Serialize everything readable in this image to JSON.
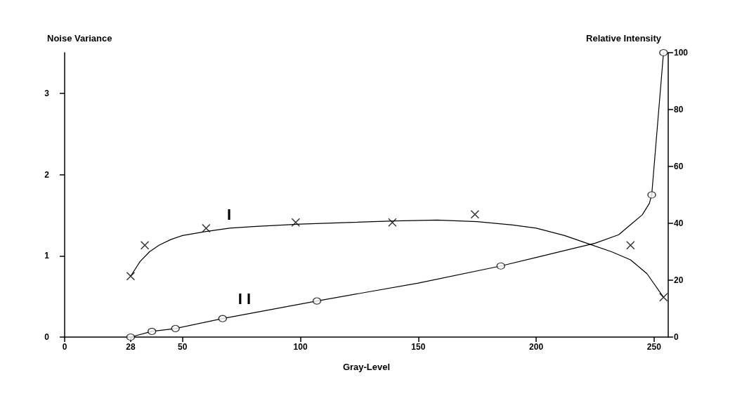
{
  "chart_data": {
    "type": "scatter",
    "xlabel": "Gray-Level",
    "ylabel": "Noise Variance",
    "y2label": "Relative Intensity",
    "xlim": [
      0,
      256
    ],
    "xticks": [
      0,
      28,
      50,
      100,
      150,
      200,
      250
    ],
    "ylim": [
      0,
      3.5
    ],
    "yticks": [
      0,
      1,
      2,
      3
    ],
    "y2lim": [
      0,
      100
    ],
    "y2ticks": [
      0,
      20,
      40,
      60,
      80,
      100
    ],
    "grid": false,
    "annotations": [
      "I",
      "I I"
    ],
    "series": [
      {
        "type": "scatter",
        "marker": "cross",
        "color": "#000000",
        "x": [
          28,
          34,
          60,
          98,
          139,
          174,
          240,
          254
        ],
        "values": [
          0.75,
          1.13,
          1.34,
          1.41,
          1.41,
          1.51,
          1.13,
          0.49
        ]
      },
      {
        "type": "line",
        "marker": "none",
        "color": "#000000",
        "x": [
          28,
          32,
          36,
          40,
          45,
          50,
          60,
          70,
          80,
          100,
          120,
          140,
          158,
          175,
          190,
          200,
          212,
          223,
          232,
          240,
          247,
          254
        ],
        "values": [
          0.75,
          0.93,
          1.05,
          1.13,
          1.2,
          1.25,
          1.3,
          1.34,
          1.36,
          1.39,
          1.41,
          1.43,
          1.44,
          1.42,
          1.38,
          1.34,
          1.25,
          1.14,
          1.05,
          0.95,
          0.78,
          0.49
        ]
      },
      {
        "type": "scatter",
        "marker": "circle",
        "axis": "y2",
        "color": "#000000",
        "x": [
          28,
          37,
          47,
          67,
          107,
          185,
          249,
          254
        ],
        "values": [
          0,
          2,
          3,
          6.5,
          12.7,
          25,
          50,
          100
        ]
      },
      {
        "type": "line",
        "marker": "none",
        "axis": "y2",
        "color": "#000000",
        "x": [
          28,
          37,
          47,
          67,
          107,
          150,
          185,
          200,
          215,
          225,
          235,
          240,
          245,
          248,
          249,
          254
        ],
        "values": [
          0,
          2,
          3,
          6.5,
          12.7,
          19,
          25,
          28,
          31,
          33,
          36,
          39.5,
          43,
          47,
          50,
          100
        ]
      }
    ]
  }
}
